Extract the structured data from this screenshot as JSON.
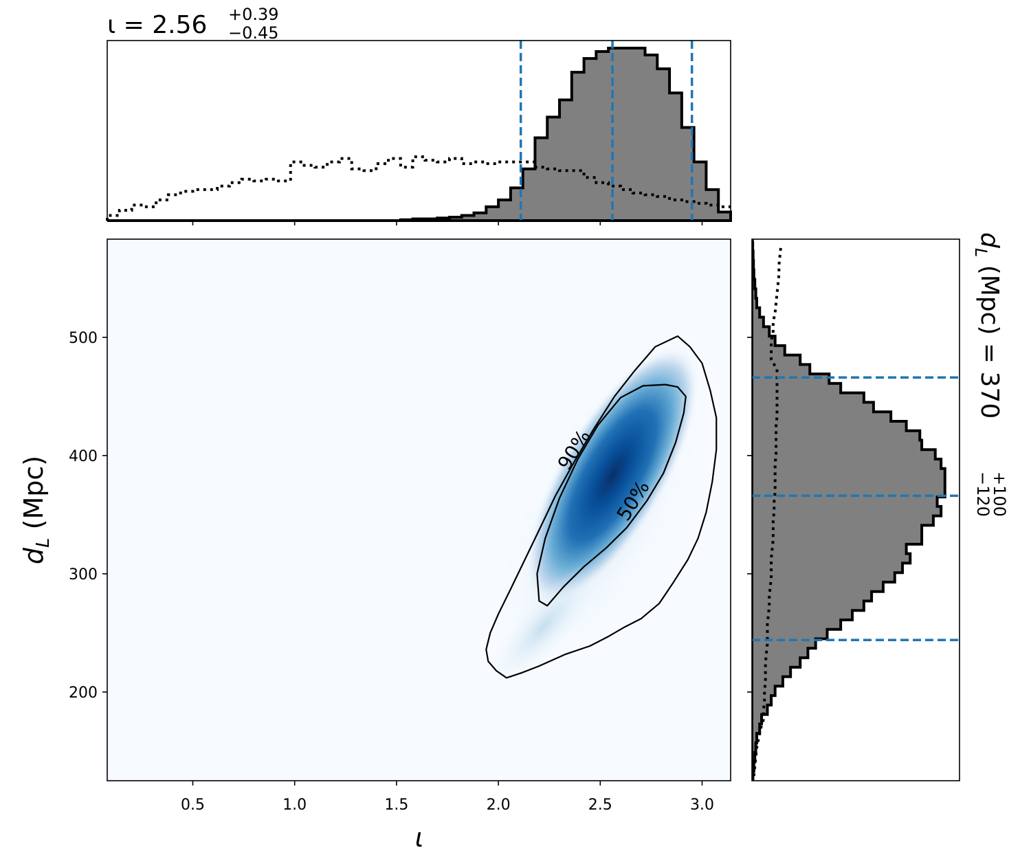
{
  "chart_data": [
    {
      "panel": "top-marginal",
      "type": "histogram",
      "title": {
        "prefix": "ι = ",
        "value": "2.56",
        "plus": "+0.39",
        "minus": "−0.45"
      },
      "x": [
        0.08,
        0.14,
        0.2,
        0.26,
        0.32,
        0.38,
        0.44,
        0.5,
        0.56,
        0.62,
        0.68,
        0.74,
        0.8,
        0.86,
        0.92,
        0.98,
        1.04,
        1.1,
        1.16,
        1.22,
        1.28,
        1.34,
        1.4,
        1.46,
        1.52,
        1.58,
        1.64,
        1.7,
        1.76,
        1.82,
        1.88,
        1.94,
        2.0,
        2.06,
        2.12,
        2.18,
        2.24,
        2.3,
        2.36,
        2.42,
        2.48,
        2.54,
        2.6,
        2.66,
        2.72,
        2.78,
        2.84,
        2.9,
        2.96,
        3.02,
        3.08
      ],
      "xlim": [
        0.08,
        3.14
      ],
      "xticks": [
        "0.5",
        "1.0",
        "1.5",
        "2.0",
        "2.5",
        "3.0"
      ],
      "xtick_values": [
        0.5,
        1.0,
        1.5,
        2.0,
        2.5,
        3.0
      ],
      "ylim": [
        0,
        1.02
      ],
      "series": [
        {
          "style": "filled-gray-step",
          "values": [
            0,
            0,
            0,
            0,
            0,
            0,
            0,
            0,
            0,
            0,
            0,
            0,
            0,
            0,
            0,
            0,
            0,
            0,
            0,
            0,
            0,
            0,
            0,
            0,
            0.005,
            0.01,
            0.01,
            0.015,
            0.02,
            0.03,
            0.045,
            0.08,
            0.12,
            0.19,
            0.3,
            0.48,
            0.6,
            0.7,
            0.86,
            0.94,
            0.98,
            1.0,
            1.0,
            1.0,
            0.96,
            0.88,
            0.74,
            0.54,
            0.34,
            0.18,
            0.05
          ]
        },
        {
          "style": "dotted-step",
          "values": [
            0.03,
            0.06,
            0.09,
            0.08,
            0.12,
            0.15,
            0.17,
            0.18,
            0.18,
            0.2,
            0.22,
            0.24,
            0.23,
            0.24,
            0.23,
            0.34,
            0.32,
            0.31,
            0.34,
            0.36,
            0.3,
            0.29,
            0.33,
            0.36,
            0.31,
            0.37,
            0.35,
            0.34,
            0.36,
            0.33,
            0.34,
            0.33,
            0.34,
            0.34,
            0.34,
            0.31,
            0.3,
            0.29,
            0.29,
            0.25,
            0.22,
            0.2,
            0.18,
            0.16,
            0.15,
            0.14,
            0.12,
            0.11,
            0.1,
            0.09,
            0.08
          ]
        }
      ],
      "vlines": [
        2.11,
        2.56,
        2.95
      ],
      "line_color": "#1f77b4",
      "fill_color": "#808080"
    },
    {
      "panel": "joint-density",
      "type": "heatmap",
      "xlabel": "ι",
      "ylabel_main": "d",
      "ylabel_sub": "L",
      "ylabel_rest": " (Mpc)",
      "xlim": [
        0.08,
        3.14
      ],
      "ylim": [
        125,
        583
      ],
      "xticks": [
        "0.5",
        "1.0",
        "1.5",
        "2.0",
        "2.5",
        "3.0"
      ],
      "xtick_values": [
        0.5,
        1.0,
        1.5,
        2.0,
        2.5,
        3.0
      ],
      "yticks": [
        "200",
        "300",
        "400",
        "500"
      ],
      "ytick_values": [
        200,
        300,
        400,
        500
      ],
      "colormap": "Blues",
      "density_peak": {
        "x": 2.56,
        "y": 383
      },
      "contours": [
        {
          "label": "90%",
          "label_at": [
            2.37,
            405
          ],
          "points": [
            [
              2.88,
              501
            ],
            [
              2.94,
              492
            ],
            [
              3.0,
              478
            ],
            [
              3.04,
              455
            ],
            [
              3.07,
              432
            ],
            [
              3.07,
              405
            ],
            [
              3.05,
              378
            ],
            [
              3.02,
              352
            ],
            [
              2.98,
              330
            ],
            [
              2.93,
              312
            ],
            [
              2.86,
              293
            ],
            [
              2.79,
              275
            ],
            [
              2.7,
              262
            ],
            [
              2.62,
              255
            ],
            [
              2.54,
              247
            ],
            [
              2.45,
              239
            ],
            [
              2.33,
              232
            ],
            [
              2.2,
              222
            ],
            [
              2.11,
              216
            ],
            [
              2.04,
              212
            ],
            [
              1.99,
              218
            ],
            [
              1.95,
              226
            ],
            [
              1.94,
              236
            ],
            [
              1.96,
              250
            ],
            [
              2.0,
              266
            ],
            [
              2.06,
              287
            ],
            [
              2.13,
              312
            ],
            [
              2.2,
              337
            ],
            [
              2.28,
              366
            ],
            [
              2.37,
              394
            ],
            [
              2.47,
              423
            ],
            [
              2.57,
              450
            ],
            [
              2.67,
              472
            ],
            [
              2.77,
              492
            ]
          ]
        },
        {
          "label": "50%",
          "label_at": [
            2.66,
            362
          ],
          "points": [
            [
              2.82,
              460
            ],
            [
              2.88,
              458
            ],
            [
              2.92,
              450
            ],
            [
              2.91,
              436
            ],
            [
              2.87,
              411
            ],
            [
              2.81,
              385
            ],
            [
              2.73,
              362
            ],
            [
              2.63,
              339
            ],
            [
              2.53,
              322
            ],
            [
              2.42,
              306
            ],
            [
              2.32,
              289
            ],
            [
              2.24,
              273
            ],
            [
              2.2,
              277
            ],
            [
              2.19,
              300
            ],
            [
              2.23,
              330
            ],
            [
              2.3,
              364
            ],
            [
              2.39,
              397
            ],
            [
              2.49,
              426
            ],
            [
              2.6,
              449
            ],
            [
              2.71,
              459
            ]
          ]
        }
      ]
    },
    {
      "panel": "right-marginal",
      "type": "histogram",
      "orientation": "horizontal",
      "label": {
        "prefix": "d",
        "sub": "L",
        "middle": " (Mpc) = ",
        "value": "370",
        "plus": "+100",
        "minus": "−120"
      },
      "y": [
        125,
        133,
        141,
        149,
        157,
        165,
        173,
        181,
        189,
        197,
        205,
        213,
        221,
        229,
        237,
        245,
        253,
        261,
        269,
        277,
        285,
        293,
        301,
        309,
        317,
        325,
        333,
        341,
        349,
        357,
        365,
        373,
        381,
        389,
        397,
        405,
        413,
        421,
        429,
        437,
        445,
        453,
        461,
        469,
        477,
        485,
        493,
        501,
        509,
        517,
        525,
        533,
        541,
        549,
        557,
        565,
        573
      ],
      "ylim": [
        125,
        583
      ],
      "xlim": [
        0,
        1.04
      ],
      "series": [
        {
          "style": "filled-gray-step",
          "values": [
            0.005,
            0.01,
            0.015,
            0.02,
            0.025,
            0.04,
            0.05,
            0.08,
            0.1,
            0.12,
            0.16,
            0.2,
            0.25,
            0.29,
            0.33,
            0.39,
            0.46,
            0.52,
            0.58,
            0.62,
            0.68,
            0.74,
            0.78,
            0.82,
            0.8,
            0.88,
            0.88,
            0.94,
            0.98,
            0.96,
            1.0,
            1.0,
            1.0,
            0.98,
            0.95,
            0.88,
            0.87,
            0.8,
            0.72,
            0.63,
            0.58,
            0.46,
            0.4,
            0.3,
            0.25,
            0.17,
            0.12,
            0.09,
            0.06,
            0.04,
            0.025,
            0.02,
            0.015,
            0.01,
            0.008,
            0.006,
            0.004
          ]
        },
        {
          "style": "dotted-line",
          "values": [
            0.01,
            0.015,
            0.02,
            0.025,
            0.035,
            0.045,
            0.06,
            0.06,
            0.065,
            0.065,
            0.07,
            0.07,
            0.07,
            0.075,
            0.08,
            0.08,
            0.08,
            0.085,
            0.09,
            0.09,
            0.095,
            0.1,
            0.1,
            0.1,
            0.105,
            0.11,
            0.11,
            0.11,
            0.115,
            0.115,
            0.12,
            0.12,
            0.12,
            0.12,
            0.125,
            0.125,
            0.125,
            0.125,
            0.13,
            0.13,
            0.13,
            0.13,
            0.13,
            0.13,
            0.1,
            0.1,
            0.1,
            0.11,
            0.11,
            0.12,
            0.125,
            0.13,
            0.135,
            0.14,
            0.14,
            0.145,
            0.15
          ]
        }
      ],
      "hlines": [
        244,
        366,
        466
      ],
      "line_color": "#1f77b4",
      "fill_color": "#808080"
    }
  ]
}
